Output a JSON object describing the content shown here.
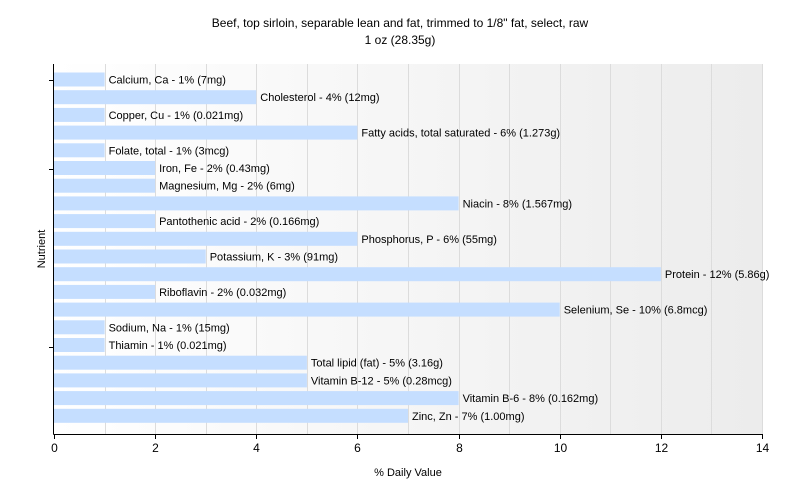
{
  "chart_data": {
    "type": "bar",
    "orientation": "horizontal",
    "title": "Beef, top sirloin, separable lean and fat, trimmed to 1/8\" fat, select, raw",
    "subtitle": "1 oz (28.35g)",
    "xlabel": "% Daily Value",
    "ylabel": "Nutrient",
    "xlim": [
      0,
      14
    ],
    "xticks": [
      "0",
      "2",
      "4",
      "6",
      "8",
      "10",
      "12",
      "14"
    ],
    "grid": "vertical",
    "bar_color": "#c5deff",
    "categories": [
      "Calcium, Ca",
      "Cholesterol",
      "Copper, Cu",
      "Fatty acids, total saturated",
      "Folate, total",
      "Iron, Fe",
      "Magnesium, Mg",
      "Niacin",
      "Pantothenic acid",
      "Phosphorus, P",
      "Potassium, K",
      "Protein",
      "Riboflavin",
      "Selenium, Se",
      "Sodium, Na",
      "Thiamin",
      "Total lipid (fat)",
      "Vitamin B-12",
      "Vitamin B-6",
      "Zinc, Zn"
    ],
    "values": [
      1,
      4,
      1,
      6,
      1,
      2,
      2,
      8,
      2,
      6,
      3,
      12,
      2,
      10,
      1,
      1,
      5,
      5,
      8,
      7
    ],
    "labels": [
      "Calcium, Ca - 1% (7mg)",
      "Cholesterol - 4% (12mg)",
      "Copper, Cu - 1% (0.021mg)",
      "Fatty acids, total saturated - 6% (1.273g)",
      "Folate, total - 1% (3mcg)",
      "Iron, Fe - 2% (0.43mg)",
      "Magnesium, Mg - 2% (6mg)",
      "Niacin - 8% (1.567mg)",
      "Pantothenic acid - 2% (0.166mg)",
      "Phosphorus, P - 6% (55mg)",
      "Potassium, K - 3% (91mg)",
      "Protein - 12% (5.86g)",
      "Riboflavin - 2% (0.032mg)",
      "Selenium, Se - 10% (6.8mcg)",
      "Sodium, Na - 1% (15mg)",
      "Thiamin - 1% (0.021mg)",
      "Total lipid (fat) - 5% (3.16g)",
      "Vitamin B-12 - 5% (0.28mcg)",
      "Vitamin B-6 - 8% (0.162mg)",
      "Zinc, Zn - 7% (1.00mg)"
    ]
  }
}
